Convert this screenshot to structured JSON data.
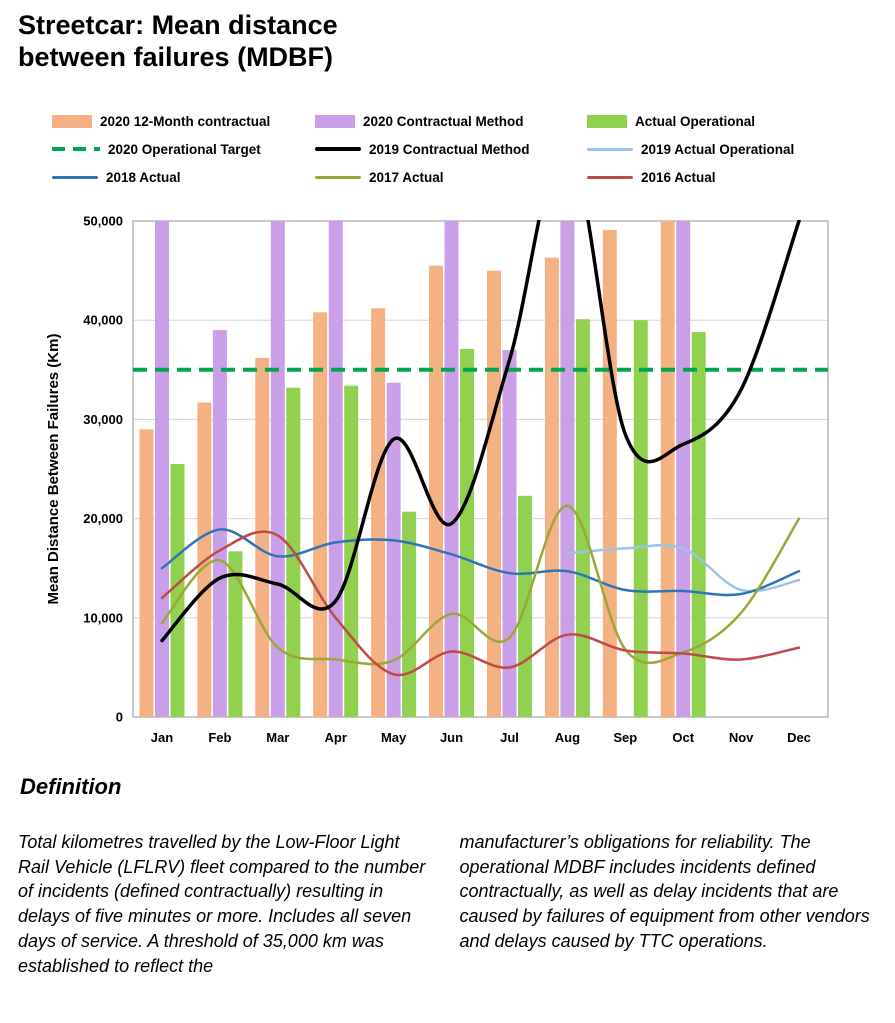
{
  "page": {
    "title_line1": "Streetcar: Mean distance",
    "title_line2": "between failures (MDBF)"
  },
  "legend": {
    "items": [
      {
        "label": "2020 12-Month contractual",
        "swatch": "bar",
        "color": "#F4B183"
      },
      {
        "label": "2020 Contractual Method",
        "swatch": "bar",
        "color": "#C9A0E8"
      },
      {
        "label": "Actual Operational",
        "swatch": "bar",
        "color": "#92D050"
      },
      {
        "label": "2020 Operational Target",
        "swatch": "dashed-line",
        "color": "#00A550"
      },
      {
        "label": "2019 Contractual Method",
        "swatch": "line",
        "color": "#000000"
      },
      {
        "label": "2019 Actual Operational",
        "swatch": "line",
        "color": "#9DC3E6"
      },
      {
        "label": "2018 Actual",
        "swatch": "line",
        "color": "#2E75B6"
      },
      {
        "label": "2017 Actual",
        "swatch": "line",
        "color": "#9AA838"
      },
      {
        "label": "2016 Actual",
        "swatch": "line",
        "color": "#BE4B48"
      }
    ]
  },
  "chart_data": {
    "type": "bar",
    "subtype": "grouped bars with overlaid smooth lines",
    "title": "Streetcar: Mean distance between failures (MDBF)",
    "xlabel": "",
    "ylabel": "Mean Distance Between Failures (Km)",
    "ylim": [
      0,
      50000
    ],
    "yticks": [
      0,
      10000,
      20000,
      30000,
      40000,
      50000
    ],
    "ytick_labels": [
      "0",
      "10,000",
      "20,000",
      "30,000",
      "40,000",
      "50,000"
    ],
    "grid": true,
    "legend_position": "top",
    "categories": [
      "Jan",
      "Feb",
      "Mar",
      "Apr",
      "May",
      "Jun",
      "Jul",
      "Aug",
      "Sep",
      "Oct",
      "Nov",
      "Dec"
    ],
    "bar_series": [
      {
        "name": "2020 12-Month contractual",
        "color": "#F4B183",
        "values": [
          29000,
          31700,
          36200,
          40800,
          41200,
          45500,
          45000,
          46300,
          49100,
          50000,
          null,
          null
        ]
      },
      {
        "name": "2020 Contractual Method",
        "color": "#C9A0E8",
        "values": [
          50000,
          39000,
          50000,
          50000,
          33700,
          50000,
          37000,
          50000,
          null,
          50000,
          null,
          null
        ]
      },
      {
        "name": "Actual Operational",
        "color": "#92D050",
        "values": [
          25500,
          16700,
          33200,
          33400,
          20700,
          37100,
          22300,
          40100,
          40000,
          38800,
          null,
          null
        ]
      }
    ],
    "line_series": [
      {
        "name": "2020 Operational Target",
        "color": "#00A550",
        "style": "dashed",
        "width": 4,
        "constant": 35000
      },
      {
        "name": "2019 Actual Operational",
        "color": "#9DC3E6",
        "style": "solid",
        "width": 2.5,
        "values": [
          null,
          null,
          null,
          null,
          null,
          null,
          null,
          16500,
          17000,
          17000,
          12800,
          13800
        ]
      },
      {
        "name": "2018 Actual",
        "color": "#2E75B6",
        "style": "solid",
        "width": 2.5,
        "values": [
          15000,
          18900,
          16200,
          17600,
          17800,
          16400,
          14500,
          14700,
          12800,
          12700,
          12400,
          14700
        ]
      },
      {
        "name": "2017 Actual",
        "color": "#9AA838",
        "style": "solid",
        "width": 2.5,
        "values": [
          9500,
          15800,
          7000,
          5800,
          5700,
          10400,
          8000,
          21300,
          6800,
          6500,
          10500,
          20000
        ]
      },
      {
        "name": "2016 Actual",
        "color": "#BE4B48",
        "style": "solid",
        "width": 2.5,
        "values": [
          12000,
          16800,
          18300,
          10000,
          4300,
          6600,
          5000,
          8300,
          6700,
          6400,
          5800,
          7000
        ]
      },
      {
        "name": "2019 Contractual Method",
        "color": "#000000",
        "style": "solid",
        "width": 3.5,
        "values": [
          7700,
          14000,
          13400,
          11700,
          28000,
          19500,
          36000,
          58000,
          28500,
          27500,
          33000,
          50000
        ]
      }
    ]
  },
  "definition": {
    "heading": "Definition",
    "col_left": "Total kilometres travelled by the Low-Floor Light Rail Vehicle (LFLRV) fleet compared to the number of incidents (defined contractually) resulting in delays of five minutes or more. Includes all seven days of service. A threshold of 35,000 km was established to reflect the",
    "col_right": "manufacturer’s obligations for reliability. The operational MDBF includes incidents defined contractually, as well as delay incidents that are caused by failures of equipment from other vendors and delays caused by TTC operations."
  }
}
